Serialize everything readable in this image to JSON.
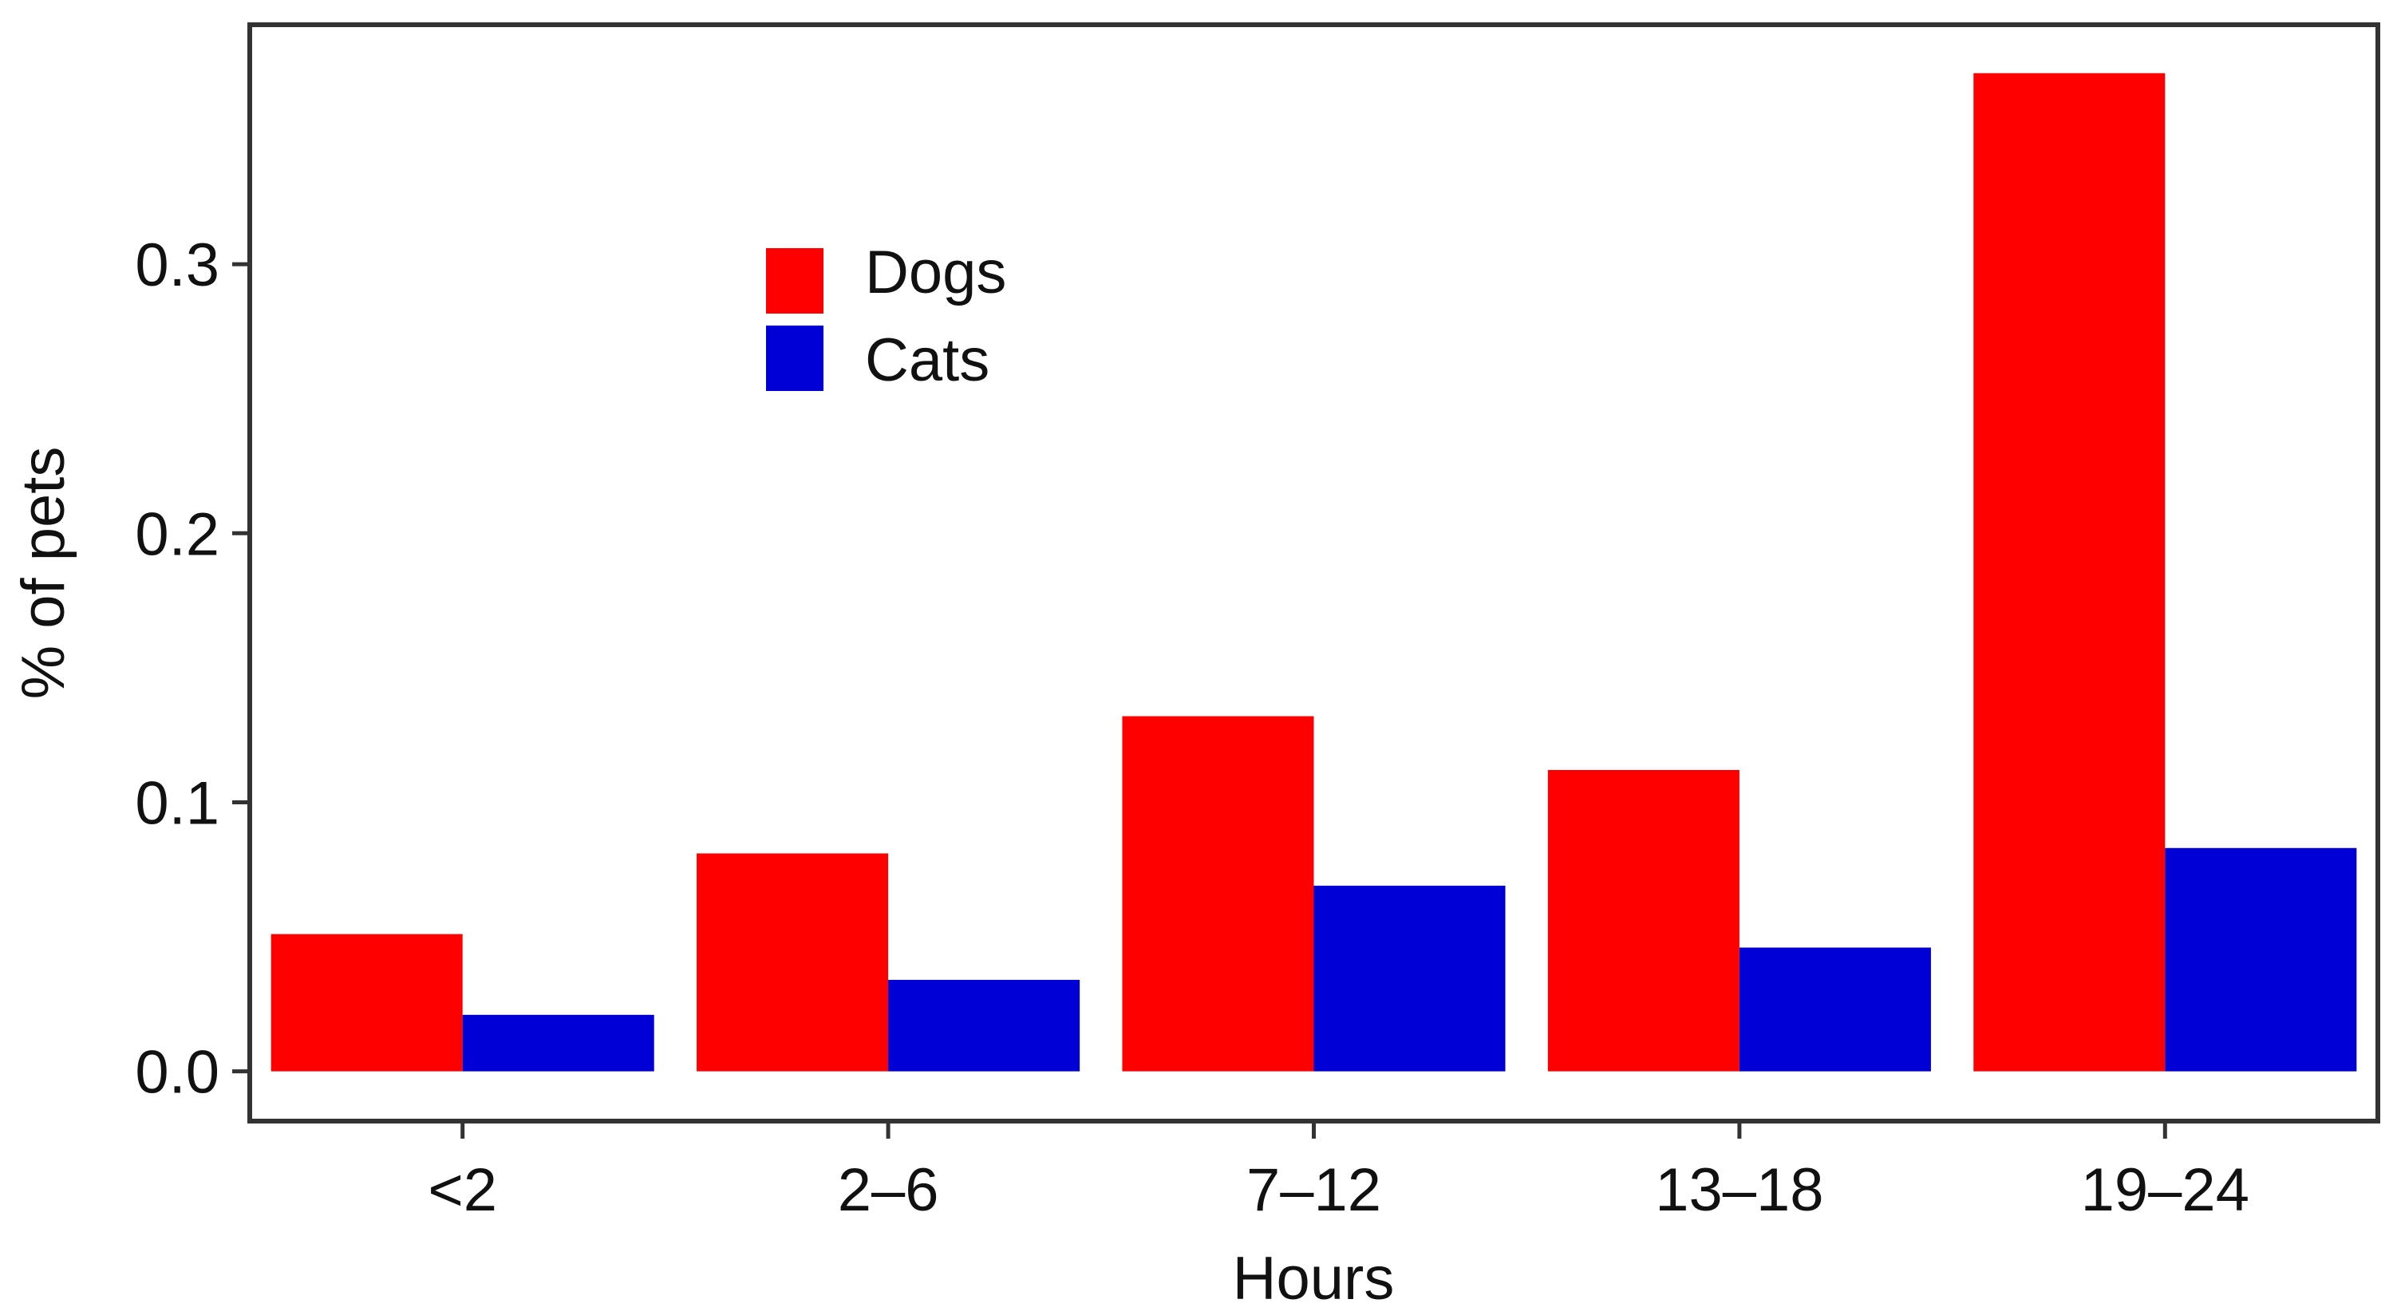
{
  "chart_data": {
    "type": "bar",
    "title": "",
    "xlabel": "Hours",
    "ylabel": "% of pets",
    "categories": [
      "<2",
      "2–6",
      "7–12",
      "13–18",
      "19–24"
    ],
    "series": [
      {
        "name": "Dogs",
        "color": "#ff0000",
        "values": [
          0.051,
          0.081,
          0.132,
          0.112,
          0.371
        ]
      },
      {
        "name": "Cats",
        "color": "#0000d6",
        "values": [
          0.021,
          0.034,
          0.069,
          0.046,
          0.083
        ]
      }
    ],
    "yticks": [
      0.0,
      0.1,
      0.2,
      0.3
    ],
    "ytick_labels": [
      "0.0",
      "0.1",
      "0.2",
      "0.3"
    ],
    "ylim": [
      -0.0185,
      0.389
    ],
    "grid": false,
    "legend_position": "top-left"
  }
}
